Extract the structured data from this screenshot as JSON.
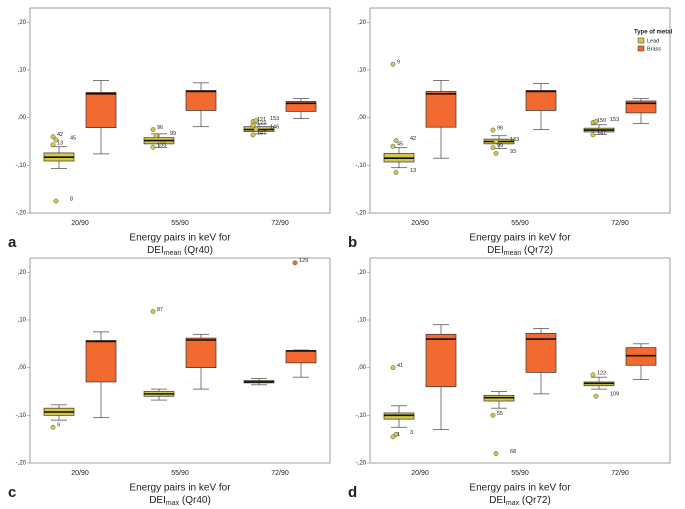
{
  "chart_data": [
    {
      "type": "box",
      "panel": "a",
      "xlabel": {
        "line1": "Energy pairs in keV for",
        "base": "DEI",
        "sub": "mean",
        "suffix": " (Qr40)"
      },
      "categories": [
        "20/90",
        "55/90",
        "72/90"
      ],
      "ylim": [
        -0.2,
        0.23
      ],
      "yticks": [
        {
          "value": -0.2,
          "label": "-,20"
        },
        {
          "value": -0.1,
          "label": "-,10"
        },
        {
          "value": 0,
          "label": ",00"
        },
        {
          "value": 0.1,
          "label": ",10"
        },
        {
          "value": 0.2,
          "label": ",20"
        }
      ],
      "series": [
        {
          "color": "#d4c84a",
          "boxes": [
            {
              "whislo": -0.107,
              "q1": -0.091,
              "med": -0.083,
              "q3": -0.074,
              "whishi": -0.061,
              "fliers": [
                {
                  "y": -0.04,
                  "case": "42"
                },
                {
                  "y": -0.047,
                  "case": "45"
                },
                {
                  "y": -0.057,
                  "case": "13"
                },
                {
                  "y": -0.175,
                  "case": "8"
                }
              ]
            },
            {
              "whislo": -0.063,
              "q1": -0.055,
              "med": -0.048,
              "q3": -0.042,
              "whishi": -0.034,
              "fliers": [
                {
                  "y": -0.025,
                  "case": "96"
                },
                {
                  "y": -0.038,
                  "case": "99"
                },
                {
                  "y": -0.062,
                  "case": "133"
                }
              ]
            },
            {
              "whislo": -0.034,
              "q1": -0.029,
              "med": -0.025,
              "q3": -0.019,
              "whishi": -0.013,
              "fliers": [
                {
                  "y": -0.008,
                  "case": "121"
                },
                {
                  "y": -0.006,
                  "case": "153"
                },
                {
                  "y": -0.016,
                  "case": "122"
                },
                {
                  "y": -0.024,
                  "case": "146"
                },
                {
                  "y": -0.036,
                  "case": "147"
                }
              ]
            }
          ]
        },
        {
          "color": "#f26a30",
          "boxes": [
            {
              "whislo": -0.076,
              "q1": -0.021,
              "med": 0.05,
              "q3": 0.053,
              "whishi": 0.078,
              "fliers": []
            },
            {
              "whislo": -0.019,
              "q1": 0.015,
              "med": 0.055,
              "q3": 0.057,
              "whishi": 0.073,
              "fliers": []
            },
            {
              "whislo": -0.002,
              "q1": 0.013,
              "med": 0.03,
              "q3": 0.034,
              "whishi": 0.04,
              "fliers": []
            }
          ]
        }
      ]
    },
    {
      "type": "box",
      "panel": "b",
      "xlabel": {
        "line1": "Energy pairs in keV for",
        "base": "DEI",
        "sub": "mean",
        "suffix": " (Qr72)"
      },
      "categories": [
        "20/90",
        "55/90",
        "72/90"
      ],
      "ylim": [
        -0.2,
        0.23
      ],
      "yticks": [
        {
          "value": -0.2,
          "label": "-,20"
        },
        {
          "value": -0.1,
          "label": "-,10"
        },
        {
          "value": 0,
          "label": ",00"
        },
        {
          "value": 0.1,
          "label": ",10"
        },
        {
          "value": 0.2,
          "label": ",20"
        }
      ],
      "legend": {
        "title": "Type of metal",
        "position": "upper right"
      },
      "series": [
        {
          "name": "Lead",
          "color": "#d4c84a",
          "boxes": [
            {
              "whislo": -0.105,
              "q1": -0.093,
              "med": -0.085,
              "q3": -0.075,
              "whishi": -0.063,
              "fliers": [
                {
                  "y": 0.112,
                  "case": "9"
                },
                {
                  "y": -0.048,
                  "case": "42"
                },
                {
                  "y": -0.06,
                  "case": "45"
                },
                {
                  "y": -0.115,
                  "case": "13"
                }
              ]
            },
            {
              "whislo": -0.065,
              "q1": -0.055,
              "med": -0.05,
              "q3": -0.045,
              "whishi": -0.038,
              "fliers": [
                {
                  "y": -0.026,
                  "case": "96"
                },
                {
                  "y": -0.05,
                  "case": "133"
                },
                {
                  "y": -0.063,
                  "case": "99"
                },
                {
                  "y": -0.075,
                  "case": "93"
                }
              ]
            },
            {
              "whislo": -0.035,
              "q1": -0.03,
              "med": -0.026,
              "q3": -0.022,
              "whishi": -0.015,
              "fliers": [
                {
                  "y": -0.01,
                  "case": "150"
                },
                {
                  "y": -0.008,
                  "case": "153"
                },
                {
                  "y": -0.036,
                  "case": "147"
                }
              ]
            }
          ]
        },
        {
          "name": "Brass",
          "color": "#f26a30",
          "boxes": [
            {
              "whislo": -0.085,
              "q1": -0.02,
              "med": 0.05,
              "q3": 0.055,
              "whishi": 0.078,
              "fliers": []
            },
            {
              "whislo": -0.025,
              "q1": 0.015,
              "med": 0.055,
              "q3": 0.057,
              "whishi": 0.072,
              "fliers": []
            },
            {
              "whislo": -0.012,
              "q1": 0.01,
              "med": 0.03,
              "q3": 0.035,
              "whishi": 0.04,
              "fliers": []
            }
          ]
        }
      ]
    },
    {
      "type": "box",
      "panel": "c",
      "xlabel": {
        "line1": "Energy pairs in keV for",
        "base": "DEI",
        "sub": "max",
        "suffix": " (Qr40)"
      },
      "categories": [
        "20/90",
        "55/90",
        "72/90"
      ],
      "ylim": [
        -0.2,
        0.23
      ],
      "yticks": [
        {
          "value": -0.2,
          "label": "-,20"
        },
        {
          "value": -0.1,
          "label": "-,10"
        },
        {
          "value": 0,
          "label": ",00"
        },
        {
          "value": 0.1,
          "label": ",10"
        },
        {
          "value": 0.2,
          "label": ",20"
        }
      ],
      "series": [
        {
          "color": "#d4c84a",
          "boxes": [
            {
              "whislo": -0.11,
              "q1": -0.1,
              "med": -0.093,
              "q3": -0.085,
              "whishi": -0.078,
              "fliers": [
                {
                  "y": -0.125,
                  "case": "9"
                }
              ]
            },
            {
              "whislo": -0.068,
              "q1": -0.06,
              "med": -0.055,
              "q3": -0.05,
              "whishi": -0.045,
              "fliers": [
                {
                  "y": 0.118,
                  "case": "87"
                }
              ]
            },
            {
              "whislo": -0.036,
              "q1": -0.032,
              "med": -0.03,
              "q3": -0.027,
              "whishi": -0.023,
              "fliers": []
            }
          ]
        },
        {
          "color": "#f26a30",
          "boxes": [
            {
              "whislo": -0.105,
              "q1": -0.03,
              "med": 0.055,
              "q3": 0.057,
              "whishi": 0.075,
              "fliers": []
            },
            {
              "whislo": -0.045,
              "q1": 0.0,
              "med": 0.058,
              "q3": 0.062,
              "whishi": 0.07,
              "fliers": []
            },
            {
              "whislo": -0.02,
              "q1": 0.01,
              "med": 0.035,
              "q3": 0.036,
              "whishi": 0.037,
              "fliers": [
                {
                  "y": 0.22,
                  "case": "129"
                }
              ]
            }
          ]
        }
      ]
    },
    {
      "type": "box",
      "panel": "d",
      "xlabel": {
        "line1": "Energy pairs in keV for",
        "base": "DEI",
        "sub": "max",
        "suffix": " (Qr72)"
      },
      "categories": [
        "20/90",
        "55/90",
        "72/90"
      ],
      "ylim": [
        -0.2,
        0.23
      ],
      "yticks": [
        {
          "value": -0.2,
          "label": "-,20"
        },
        {
          "value": -0.1,
          "label": "-,10"
        },
        {
          "value": 0,
          "label": ",00"
        },
        {
          "value": 0.1,
          "label": ",10"
        },
        {
          "value": 0.2,
          "label": ",20"
        }
      ],
      "series": [
        {
          "color": "#d4c84a",
          "boxes": [
            {
              "whislo": -0.125,
              "q1": -0.108,
              "med": -0.1,
              "q3": -0.095,
              "whishi": -0.08,
              "fliers": [
                {
                  "y": 0.0,
                  "case": "41"
                },
                {
                  "y": -0.14,
                  "case": "3"
                },
                {
                  "y": -0.145,
                  "case": "1"
                }
              ]
            },
            {
              "whislo": -0.085,
              "q1": -0.07,
              "med": -0.063,
              "q3": -0.058,
              "whishi": -0.05,
              "fliers": [
                {
                  "y": -0.1,
                  "case": "55"
                },
                {
                  "y": -0.18,
                  "case": "68"
                }
              ]
            },
            {
              "whislo": -0.045,
              "q1": -0.038,
              "med": -0.033,
              "q3": -0.03,
              "whishi": -0.02,
              "fliers": [
                {
                  "y": -0.015,
                  "case": "122"
                },
                {
                  "y": -0.06,
                  "case": "109"
                }
              ]
            }
          ]
        },
        {
          "color": "#f26a30",
          "boxes": [
            {
              "whislo": -0.13,
              "q1": -0.04,
              "med": 0.06,
              "q3": 0.07,
              "whishi": 0.09,
              "fliers": []
            },
            {
              "whislo": -0.055,
              "q1": -0.01,
              "med": 0.06,
              "q3": 0.072,
              "whishi": 0.082,
              "fliers": []
            },
            {
              "whislo": -0.025,
              "q1": 0.005,
              "med": 0.025,
              "q3": 0.042,
              "whishi": 0.05,
              "fliers": []
            }
          ]
        }
      ]
    }
  ]
}
